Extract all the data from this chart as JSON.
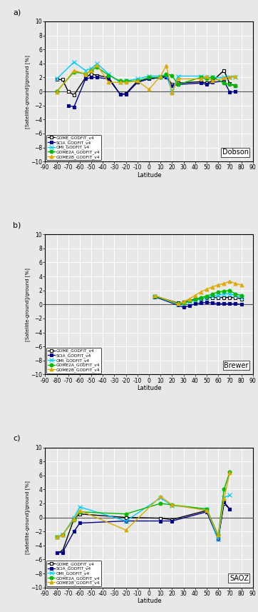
{
  "panel_a": {
    "title": "Dobson",
    "ylabel": "[Satellite-ground]/ground [%]",
    "xlabel": "Latitude",
    "xlim": [
      -90,
      90
    ],
    "ylim": [
      -10,
      10
    ],
    "xticks": [
      -90,
      -80,
      -70,
      -60,
      -50,
      -40,
      -30,
      -20,
      -10,
      0,
      10,
      20,
      30,
      40,
      50,
      60,
      70,
      80,
      90
    ],
    "yticks": [
      -10,
      -8,
      -6,
      -4,
      -2,
      0,
      2,
      4,
      6,
      8,
      10
    ],
    "series": {
      "GOME_GODFIT_v4": {
        "color": "#000000",
        "marker": "s",
        "markersize": 3.5,
        "markerfacecolor": "white",
        "lw": 1.0,
        "x": [
          -80,
          -75,
          -70,
          -65,
          -55,
          -50,
          -45,
          -35,
          -25,
          -20,
          -10,
          0,
          10,
          15,
          20,
          25,
          45,
          50,
          55,
          65,
          70,
          75
        ],
        "y": [
          1.7,
          1.7,
          0.0,
          -0.5,
          2.0,
          2.5,
          2.3,
          2.0,
          -0.4,
          -0.3,
          1.5,
          1.8,
          2.0,
          2.2,
          1.0,
          1.2,
          1.4,
          1.2,
          1.5,
          3.0,
          1.1,
          0.8
        ]
      },
      "SCIA_GODFIT_v4": {
        "color": "#00008B",
        "marker": "s",
        "markersize": 3.5,
        "markerfacecolor": "#00008B",
        "lw": 1.0,
        "x": [
          -70,
          -65,
          -55,
          -50,
          -45,
          -35,
          -25,
          -20,
          -10,
          0,
          10,
          15,
          20,
          25,
          45,
          50,
          55,
          65,
          70,
          75
        ],
        "y": [
          -2.0,
          -2.2,
          1.8,
          2.0,
          2.0,
          1.8,
          -0.4,
          -0.4,
          1.3,
          1.8,
          2.0,
          2.0,
          0.8,
          1.0,
          1.2,
          1.0,
          1.3,
          1.5,
          -0.1,
          0.0
        ]
      },
      "OMI_GODFIT_v4": {
        "color": "#00CCFF",
        "marker": "x",
        "markersize": 4,
        "markerfacecolor": "#00CCFF",
        "lw": 1.0,
        "x": [
          -80,
          -65,
          -55,
          -50,
          -45,
          -35,
          -25,
          -20,
          -10,
          0,
          10,
          15,
          20,
          25,
          45,
          50,
          55,
          65,
          70,
          75
        ],
        "y": [
          1.8,
          4.2,
          3.0,
          3.3,
          4.0,
          2.5,
          1.3,
          1.5,
          1.8,
          2.2,
          2.2,
          2.3,
          0.0,
          2.2,
          2.2,
          2.0,
          2.0,
          2.0,
          2.0,
          2.1
        ]
      },
      "GOME2A_GODFIT_v4": {
        "color": "#00BB00",
        "marker": "o",
        "markersize": 3.5,
        "markerfacecolor": "#00BB00",
        "lw": 1.0,
        "x": [
          -80,
          -65,
          -55,
          -50,
          -45,
          -35,
          -25,
          -20,
          -10,
          0,
          10,
          15,
          20,
          25,
          45,
          50,
          55,
          65,
          70,
          75
        ],
        "y": [
          0.0,
          2.8,
          2.5,
          3.0,
          3.5,
          2.3,
          1.5,
          1.5,
          1.5,
          2.0,
          2.0,
          2.5,
          2.3,
          1.0,
          2.0,
          1.8,
          2.1,
          1.2,
          1.0,
          0.8
        ]
      },
      "GOME2B_GODFIT_v4": {
        "color": "#DDAA00",
        "marker": "^",
        "markersize": 3.5,
        "markerfacecolor": "#DDAA00",
        "lw": 1.0,
        "x": [
          -80,
          -65,
          -55,
          -50,
          -45,
          -35,
          -25,
          -20,
          -10,
          0,
          10,
          15,
          20,
          25,
          45,
          50,
          55,
          65,
          70,
          75
        ],
        "y": [
          -0.1,
          3.0,
          2.5,
          3.0,
          3.8,
          1.3,
          1.3,
          1.3,
          1.5,
          0.3,
          2.2,
          3.7,
          -0.2,
          1.8,
          1.8,
          2.2,
          1.5,
          1.9,
          2.1,
          2.2
        ]
      }
    }
  },
  "panel_b": {
    "title": "Brewer",
    "ylabel": "[Satellite-ground]/ground [%]",
    "xlabel": "Latitude",
    "xlim": [
      -90,
      90
    ],
    "ylim": [
      -10,
      10
    ],
    "xticks": [
      -90,
      -80,
      -70,
      -60,
      -50,
      -40,
      -30,
      -20,
      -10,
      0,
      10,
      20,
      30,
      40,
      50,
      60,
      70,
      80,
      90
    ],
    "yticks": [
      -10,
      -8,
      -6,
      -4,
      -2,
      0,
      2,
      4,
      6,
      8,
      10
    ],
    "series": {
      "GOME_GODFIT_v4": {
        "color": "#000000",
        "marker": "s",
        "markersize": 3.5,
        "markerfacecolor": "white",
        "lw": 1.0,
        "x": [
          5,
          25,
          30,
          35,
          40,
          45,
          50,
          55,
          60,
          65,
          70,
          75,
          80
        ],
        "y": [
          1.2,
          0.2,
          0.3,
          0.5,
          0.8,
          0.8,
          1.0,
          1.0,
          1.0,
          1.0,
          1.0,
          1.0,
          0.8
        ]
      },
      "SCIA_GODFIT_v4": {
        "color": "#00008B",
        "marker": "s",
        "markersize": 3.5,
        "markerfacecolor": "#00008B",
        "lw": 1.0,
        "x": [
          5,
          25,
          30,
          35,
          40,
          45,
          50,
          55,
          60,
          65,
          70,
          75,
          80
        ],
        "y": [
          1.1,
          -0.1,
          -0.4,
          -0.2,
          0.1,
          0.2,
          0.3,
          0.2,
          0.1,
          0.1,
          0.1,
          0.1,
          0.0
        ]
      },
      "OMI_GODFIT_v4": {
        "color": "#00CCFF",
        "marker": "x",
        "markersize": 4,
        "markerfacecolor": "#00CCFF",
        "lw": 1.0,
        "x": [
          5,
          25,
          30,
          35,
          40,
          45,
          50,
          55,
          60,
          65,
          70,
          75,
          80
        ],
        "y": [
          1.2,
          0.0,
          0.2,
          0.4,
          0.6,
          0.8,
          1.0,
          1.2,
          1.3,
          1.5,
          1.5,
          1.3,
          1.0
        ]
      },
      "GOME2A_GODFIT_v4": {
        "color": "#00BB00",
        "marker": "o",
        "markersize": 3.5,
        "markerfacecolor": "#00BB00",
        "lw": 1.0,
        "x": [
          5,
          25,
          30,
          35,
          40,
          45,
          50,
          55,
          60,
          65,
          70,
          75,
          80
        ],
        "y": [
          1.2,
          0.1,
          0.2,
          0.5,
          0.7,
          1.0,
          1.2,
          1.5,
          1.8,
          1.9,
          2.0,
          1.5,
          1.3
        ]
      },
      "GOME2B_GODFIT_v4": {
        "color": "#DDAA00",
        "marker": "^",
        "markersize": 3.5,
        "markerfacecolor": "#DDAA00",
        "lw": 1.0,
        "x": [
          5,
          25,
          30,
          35,
          40,
          45,
          50,
          55,
          60,
          65,
          70,
          75,
          80
        ],
        "y": [
          1.3,
          0.1,
          0.4,
          0.8,
          1.3,
          1.8,
          2.2,
          2.5,
          2.8,
          3.0,
          3.3,
          3.0,
          2.8
        ]
      }
    }
  },
  "panel_c": {
    "title": "SAOZ",
    "ylabel": "[Satellite-ground]/ground [%]",
    "xlabel": "Latitude",
    "xlim": [
      -90,
      90
    ],
    "ylim": [
      -10,
      10
    ],
    "xticks": [
      -90,
      -80,
      -70,
      -60,
      -50,
      -40,
      -30,
      -20,
      -10,
      0,
      10,
      20,
      30,
      40,
      50,
      60,
      70,
      80,
      90
    ],
    "yticks": [
      -10,
      -8,
      -6,
      -4,
      -2,
      0,
      2,
      4,
      6,
      8,
      10
    ],
    "series": {
      "GOME_GODFIT_v4": {
        "color": "#000000",
        "marker": "s",
        "markersize": 3.5,
        "markerfacecolor": "white",
        "lw": 1.0,
        "x": [
          -80,
          -75,
          -65,
          -60,
          -20,
          10,
          20,
          50,
          60,
          65,
          70
        ],
        "y": [
          -5.0,
          -4.8,
          -0.2,
          0.5,
          0.0,
          -0.1,
          -0.3,
          1.0,
          -3.0,
          2.0,
          1.2
        ]
      },
      "SCIA_GODFIT_v4": {
        "color": "#00008B",
        "marker": "s",
        "markersize": 3.5,
        "markerfacecolor": "#00008B",
        "lw": 1.0,
        "x": [
          -80,
          -75,
          -65,
          -60,
          -20,
          10,
          20,
          50,
          60,
          65,
          70
        ],
        "y": [
          -5.0,
          -5.0,
          -2.0,
          -0.8,
          -0.5,
          -0.5,
          -0.5,
          0.8,
          -3.1,
          2.2,
          1.2
        ]
      },
      "OMI_GODFIT_v4": {
        "color": "#00CCFF",
        "marker": "x",
        "markersize": 4,
        "markerfacecolor": "#00CCFF",
        "lw": 1.0,
        "x": [
          -80,
          -75,
          -65,
          -60,
          -20,
          10,
          20,
          50,
          60,
          65,
          70
        ],
        "y": [
          -2.8,
          -2.5,
          0.0,
          1.5,
          -0.5,
          2.8,
          1.7,
          1.2,
          -3.1,
          2.8,
          3.2
        ]
      },
      "GOME2A_GODFIT_v4": {
        "color": "#00BB00",
        "marker": "o",
        "markersize": 3.5,
        "markerfacecolor": "#00BB00",
        "lw": 1.0,
        "x": [
          -80,
          -75,
          -65,
          -60,
          -20,
          10,
          20,
          50,
          60,
          65,
          70
        ],
        "y": [
          -2.8,
          -2.5,
          -0.3,
          0.8,
          0.5,
          2.0,
          1.8,
          1.2,
          -2.5,
          4.0,
          6.5
        ]
      },
      "GOME2B_GODFIT_v4": {
        "color": "#DDAA00",
        "marker": "^",
        "markersize": 3.5,
        "markerfacecolor": "#DDAA00",
        "lw": 1.0,
        "x": [
          -80,
          -75,
          -65,
          -60,
          -20,
          10,
          20,
          50,
          60,
          65,
          70
        ],
        "y": [
          -2.8,
          -2.5,
          -0.2,
          1.0,
          -1.8,
          3.0,
          1.8,
          1.0,
          -2.5,
          2.7,
          6.4
        ]
      }
    }
  },
  "legend_labels": [
    "GOME_GODFIT_v4",
    "SCIA_GODFIT_v4",
    "OMI_GODFIT_v4",
    "GOME2A_GODFIT_v4",
    "GOME2B_GODFIT_v4"
  ],
  "bg_color": "#e8e8e8",
  "plot_bg": "#e8e8e8",
  "grid_color": "#ffffff"
}
